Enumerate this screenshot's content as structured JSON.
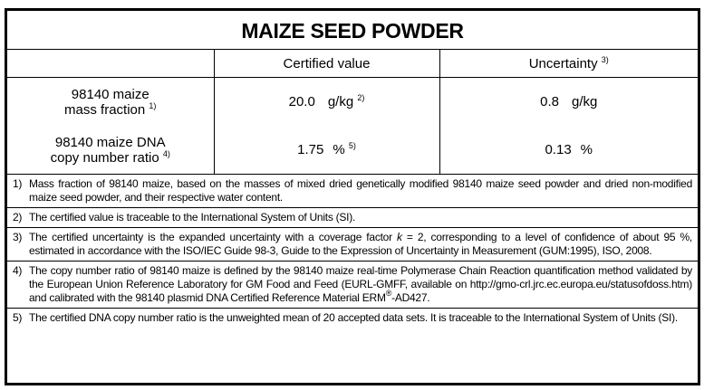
{
  "title": "MAIZE SEED POWDER",
  "headers": {
    "empty": "",
    "certified": "Certified value",
    "uncertainty": "Uncertainty",
    "uncertainty_ref": "3)"
  },
  "rows": [
    {
      "label_line1": "98140 maize",
      "label_line2": "mass fraction",
      "label_ref": "1)",
      "value": "20.0",
      "value_unit": "g/kg",
      "value_ref": "2)",
      "uncertainty": "0.8",
      "uncertainty_unit": "g/kg"
    },
    {
      "label_line1": "98140 maize DNA",
      "label_line2": "copy number ratio",
      "label_ref": "4)",
      "value": "1.75",
      "value_unit": "%",
      "value_ref": "5)",
      "uncertainty": "0.13",
      "uncertainty_unit": "%"
    }
  ],
  "notes": [
    {
      "num": "1)",
      "text": "Mass fraction of 98140 maize, based on the masses of mixed dried genetically modified 98140 maize seed powder and dried non-modified maize seed powder, and their respective water content."
    },
    {
      "num": "2)",
      "text": "The certified value is traceable to the International System of Units (SI)."
    },
    {
      "num": "3)",
      "text_a": "The certified uncertainty is the expanded uncertainty with a coverage factor ",
      "italic": "k",
      "text_b": " = 2, corresponding to a level of confidence of about 95 %, estimated in accordance with the ISO/IEC Guide 98-3, Guide to the Expression of Uncertainty in Measurement (GUM:1995), ISO, 2008."
    },
    {
      "num": "4)",
      "text_a": "The copy number ratio of 98140 maize is defined by the 98140 maize real-time Polymerase Chain Reaction quantification method validated by the European Union Reference Laboratory for GM Food and Feed (EURL-GMFF, available on http://gmo-crl.jrc.ec.europa.eu/statusofdoss.htm) and calibrated with the 98140 plasmid DNA Certified Reference Material ERM",
      "reg": "®",
      "text_b": "-AD427."
    },
    {
      "num": "5)",
      "text": "The certified DNA copy number ratio is the unweighted mean of 20 accepted data sets. It is traceable to the International System of Units (SI)."
    }
  ]
}
